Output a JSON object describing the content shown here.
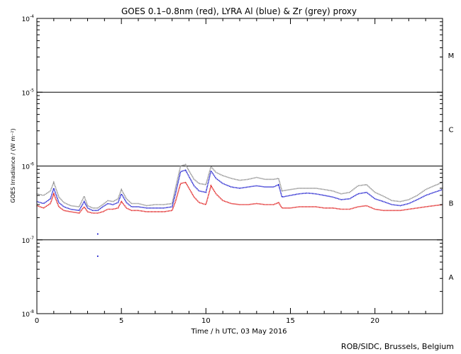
{
  "footer": "ROB/SIDC, Brussels, Belgium",
  "chart_data": {
    "type": "line",
    "title": "GOES 0.1–0.8nm (red), LYRA Al (blue) & Zr (grey) proxy",
    "xlabel": "Time / h UTC, 03 May 2016",
    "ylabel": "GOES Irradiance / (W m⁻²)",
    "xlim": [
      0,
      24
    ],
    "ylim": [
      1e-08,
      0.0001
    ],
    "yscale": "log",
    "x_ticks": [
      0,
      5,
      10,
      15,
      20
    ],
    "y_tick_labels": [
      {
        "base": "10",
        "exp": "-8",
        "value": 1e-08
      },
      {
        "base": "10",
        "exp": "-7",
        "value": 1e-07
      },
      {
        "base": "10",
        "exp": "-6",
        "value": 1e-06
      },
      {
        "base": "10",
        "exp": "-5",
        "value": 1e-05
      },
      {
        "base": "10",
        "exp": "-4",
        "value": 0.0001
      }
    ],
    "flare_class_lines": [
      1e-07,
      1e-06,
      1e-05
    ],
    "flare_classes": [
      {
        "label": "A",
        "value": 3.16e-08
      },
      {
        "label": "B",
        "value": 3.16e-07
      },
      {
        "label": "C",
        "value": 3.16e-06
      },
      {
        "label": "M",
        "value": 3.16e-05
      }
    ],
    "grid": false,
    "series": [
      {
        "color": "#808080",
        "x": [
          0,
          0.4,
          0.8,
          1.0,
          1.3,
          1.6,
          2.0,
          2.5,
          2.8,
          3.0,
          3.3,
          3.6,
          3.9,
          4.2,
          4.5,
          4.8,
          5.0,
          5.3,
          5.6,
          6.0,
          6.5,
          7.0,
          7.5,
          8.0,
          8.2,
          8.5,
          8.8,
          9.0,
          9.3,
          9.6,
          10.0,
          10.3,
          10.6,
          11.0,
          11.5,
          12.0,
          12.5,
          13.0,
          13.5,
          14.0,
          14.3,
          14.5,
          15.0,
          15.5,
          16.0,
          16.5,
          17.0,
          17.5,
          18.0,
          18.5,
          19.0,
          19.5,
          20.0,
          20.5,
          21.0,
          21.5,
          22.0,
          22.5,
          23.0,
          23.5,
          24.0
        ],
        "values": [
          4.2e-07,
          4e-07,
          4.6e-07,
          6e-07,
          3.8e-07,
          3.2e-07,
          2.9e-07,
          2.8e-07,
          3.9e-07,
          2.9e-07,
          2.7e-07,
          2.7e-07,
          3e-07,
          3.4e-07,
          3.3e-07,
          3.6e-07,
          4.8e-07,
          3.6e-07,
          3.1e-07,
          3.1e-07,
          2.9e-07,
          3e-07,
          3e-07,
          3.1e-07,
          5e-07,
          1e-06,
          1.05e-06,
          8.6e-07,
          6.6e-07,
          5.8e-07,
          5.6e-07,
          9.8e-07,
          8.2e-07,
          7.4e-07,
          6.8e-07,
          6.4e-07,
          6.6e-07,
          7e-07,
          6.6e-07,
          6.6e-07,
          6.8e-07,
          4.6e-07,
          4.8e-07,
          5e-07,
          5e-07,
          5e-07,
          4.8e-07,
          4.6e-07,
          4.2e-07,
          4.4e-07,
          5.4e-07,
          5.6e-07,
          4.4e-07,
          3.9e-07,
          3.4e-07,
          3.3e-07,
          3.5e-07,
          4e-07,
          4.8e-07,
          5.4e-07,
          6e-07
        ]
      },
      {
        "color": "#0000c8",
        "x": [
          0,
          0.4,
          0.8,
          1.0,
          1.3,
          1.6,
          2.0,
          2.5,
          2.8,
          3.0,
          3.3,
          3.6,
          3.9,
          4.2,
          4.5,
          4.8,
          5.0,
          5.3,
          5.6,
          6.0,
          6.5,
          7.0,
          7.5,
          8.0,
          8.2,
          8.5,
          8.8,
          9.0,
          9.3,
          9.6,
          10.0,
          10.3,
          10.6,
          11.0,
          11.5,
          12.0,
          12.5,
          13.0,
          13.5,
          14.0,
          14.3,
          14.5,
          15.0,
          15.5,
          16.0,
          16.5,
          17.0,
          17.5,
          18.0,
          18.5,
          19.0,
          19.5,
          20.0,
          20.5,
          21.0,
          21.5,
          22.0,
          22.5,
          23.0,
          23.5,
          24.0
        ],
        "values": [
          3.3e-07,
          3.1e-07,
          3.6e-07,
          5e-07,
          3.2e-07,
          2.8e-07,
          2.6e-07,
          2.5e-07,
          3.3e-07,
          2.7e-07,
          2.5e-07,
          2.5e-07,
          2.8e-07,
          3.1e-07,
          3e-07,
          3.2e-07,
          4.2e-07,
          3.2e-07,
          2.8e-07,
          2.8e-07,
          2.7e-07,
          2.7e-07,
          2.7e-07,
          2.8e-07,
          4.2e-07,
          8.4e-07,
          8.8e-07,
          7.2e-07,
          5.4e-07,
          4.6e-07,
          4.4e-07,
          8.6e-07,
          6.8e-07,
          5.8e-07,
          5.2e-07,
          5e-07,
          5.2e-07,
          5.4e-07,
          5.2e-07,
          5.2e-07,
          5.6e-07,
          3.8e-07,
          4e-07,
          4.2e-07,
          4.3e-07,
          4.2e-07,
          4e-07,
          3.8e-07,
          3.5e-07,
          3.6e-07,
          4.2e-07,
          4.4e-07,
          3.6e-07,
          3.3e-07,
          3e-07,
          2.9e-07,
          3.1e-07,
          3.5e-07,
          4e-07,
          4.4e-07,
          4.8e-07
        ]
      },
      {
        "color": "#dc0000",
        "x": [
          0,
          0.4,
          0.8,
          1.0,
          1.3,
          1.6,
          2.0,
          2.5,
          2.8,
          3.0,
          3.3,
          3.6,
          3.9,
          4.2,
          4.5,
          4.8,
          5.0,
          5.3,
          5.6,
          6.0,
          6.5,
          7.0,
          7.5,
          8.0,
          8.2,
          8.5,
          8.8,
          9.0,
          9.3,
          9.6,
          10.0,
          10.3,
          10.6,
          11.0,
          11.5,
          12.0,
          12.5,
          13.0,
          13.5,
          14.0,
          14.3,
          14.5,
          15.0,
          15.5,
          16.0,
          16.5,
          17.0,
          17.5,
          18.0,
          18.5,
          19.0,
          19.5,
          20.0,
          20.5,
          21.0,
          21.5,
          22.0,
          22.5,
          23.0,
          23.5,
          24.0
        ],
        "values": [
          2.9e-07,
          2.7e-07,
          3.1e-07,
          4.2e-07,
          2.8e-07,
          2.5e-07,
          2.4e-07,
          2.3e-07,
          2.8e-07,
          2.4e-07,
          2.3e-07,
          2.3e-07,
          2.4e-07,
          2.6e-07,
          2.6e-07,
          2.7e-07,
          3.3e-07,
          2.7e-07,
          2.5e-07,
          2.5e-07,
          2.4e-07,
          2.4e-07,
          2.4e-07,
          2.5e-07,
          3.3e-07,
          5.8e-07,
          6e-07,
          5e-07,
          3.8e-07,
          3.2e-07,
          3e-07,
          5.4e-07,
          4.2e-07,
          3.4e-07,
          3.1e-07,
          3e-07,
          3e-07,
          3.1e-07,
          3e-07,
          3e-07,
          3.2e-07,
          2.7e-07,
          2.7e-07,
          2.8e-07,
          2.8e-07,
          2.8e-07,
          2.7e-07,
          2.7e-07,
          2.6e-07,
          2.6e-07,
          2.8e-07,
          2.9e-07,
          2.6e-07,
          2.5e-07,
          2.5e-07,
          2.5e-07,
          2.6e-07,
          2.7e-07,
          2.8e-07,
          2.9e-07,
          3e-07
        ]
      }
    ],
    "outliers": [
      {
        "x": 3.6,
        "value": 6e-08,
        "color": "#0000c8"
      },
      {
        "x": 3.6,
        "value": 1.2e-07,
        "color": "#0000c8"
      }
    ]
  }
}
